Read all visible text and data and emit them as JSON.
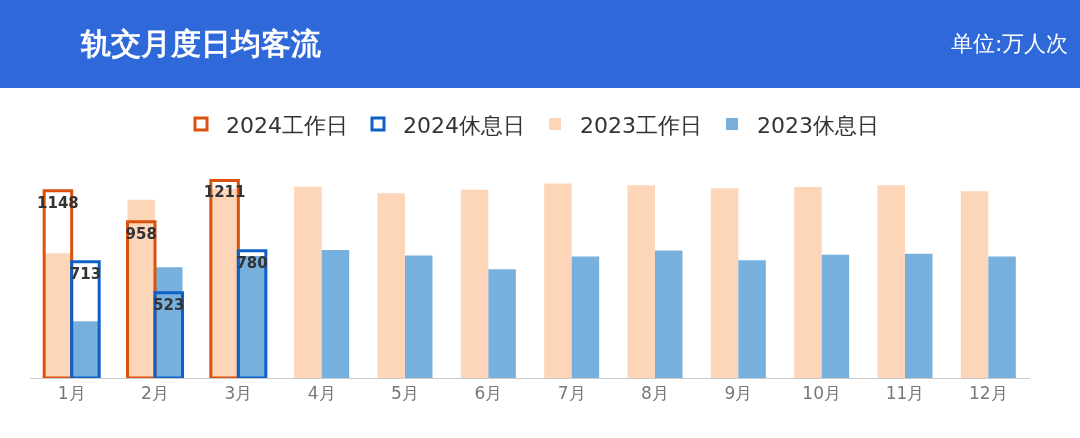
{
  "chart_data": {
    "type": "bar",
    "title": "轨交月度日均客流",
    "annotations": [
      "单位:万人次"
    ],
    "categories": [
      "1月",
      "2月",
      "3月",
      "4月",
      "5月",
      "6月",
      "7月",
      "8月",
      "9月",
      "10月",
      "11月",
      "12月"
    ],
    "series": [
      {
        "name": "2023工作日",
        "color": "#fdd5b8",
        "values": [
          765,
          1093,
          1160,
          1172,
          1133,
          1153,
          1192,
          1181,
          1163,
          1171,
          1181,
          1145
        ]
      },
      {
        "name": "2023休息日",
        "color": "#77b0dd",
        "values": [
          348,
          679,
          747,
          785,
          750,
          667,
          745,
          782,
          722,
          756,
          761,
          745
        ]
      },
      {
        "name": "2024工作日",
        "color": "#d9530f",
        "values": [
          1148,
          958,
          1211,
          null,
          null,
          null,
          null,
          null,
          null,
          null,
          null,
          null
        ],
        "value_labels": [
          "1148",
          "958",
          "1211",
          null,
          null,
          null,
          null,
          null,
          null,
          null,
          null,
          null
        ]
      },
      {
        "name": "2024休息日",
        "color": "#0f5fc8",
        "values": [
          713,
          523,
          780,
          null,
          null,
          null,
          null,
          null,
          null,
          null,
          null,
          null
        ],
        "value_labels": [
          "713",
          "523",
          "780",
          null,
          null,
          null,
          null,
          null,
          null,
          null,
          null,
          null
        ]
      }
    ],
    "legend": "top"
  }
}
